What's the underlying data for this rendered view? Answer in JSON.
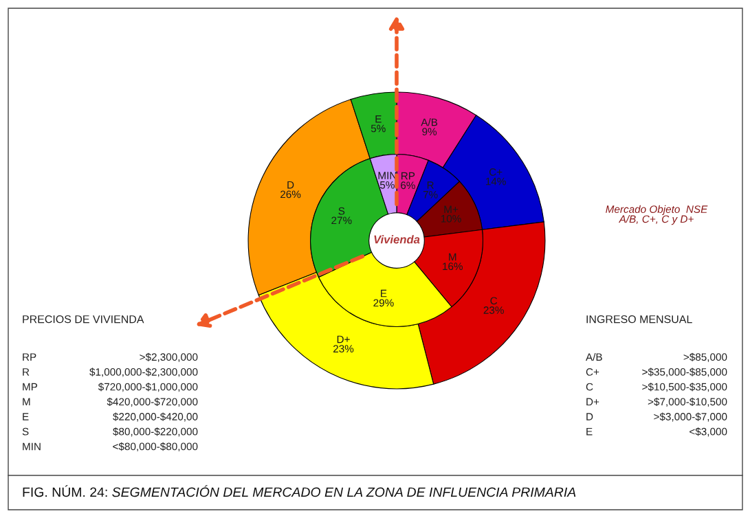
{
  "chart_data": {
    "type": "donut",
    "series": [
      {
        "values": [
          9,
          14,
          23,
          23,
          26,
          5
        ],
        "value_labels": [
          "A/B\n9%",
          "C+\n14%",
          "C\n23%",
          "D+\n23%",
          "D\n26%",
          "E\n5%"
        ],
        "colors": [
          "#e8168c",
          "#0000cc",
          "#dd0000",
          "#ffff00",
          "#ff9900",
          "#22b522"
        ]
      },
      {
        "values": [
          6,
          7,
          10,
          16,
          29,
          27,
          5
        ],
        "value_labels": [
          "RP\n6%",
          "R\n7%",
          "M+\n10%",
          "M\n16%",
          "E\n29%",
          "S\n27%",
          "MIN\n5%"
        ],
        "colors": [
          "#e8168c",
          "#0000cc",
          "#800000",
          "#dd0000",
          "#ffff00",
          "#22b522",
          "#cc99ff"
        ]
      }
    ],
    "annotations": [
      "Vivienda",
      "Mercado Objeto  NSE\nA/B, C+, C y D+",
      "PRECIOS DE VIVIENDA",
      "RP",
      ">$2,300,000",
      "R",
      "$1,000,000-$2,300,000",
      "MP",
      "$720,000-$1,000,000",
      "M",
      "$420,000-$720,000",
      "E",
      "$220,000-$420,00",
      "S",
      "$80,000-$220,000",
      "MIN",
      "<$80,000-$80,000",
      "INGRESO MENSUAL",
      "A/B",
      ">$85,000",
      "C+",
      ">$35,000-$85,000",
      "C",
      ">$10,500-$35,000",
      "D+",
      ">$7,000-$10,500",
      "D",
      ">$3,000-$7,000",
      "E",
      "<$3,000",
      "FIG. NÚM. 24:",
      "SEGMENTACIÓN DEL MERCADO EN LA ZONA DE INFLUENCIA PRIMARIA"
    ]
  }
}
